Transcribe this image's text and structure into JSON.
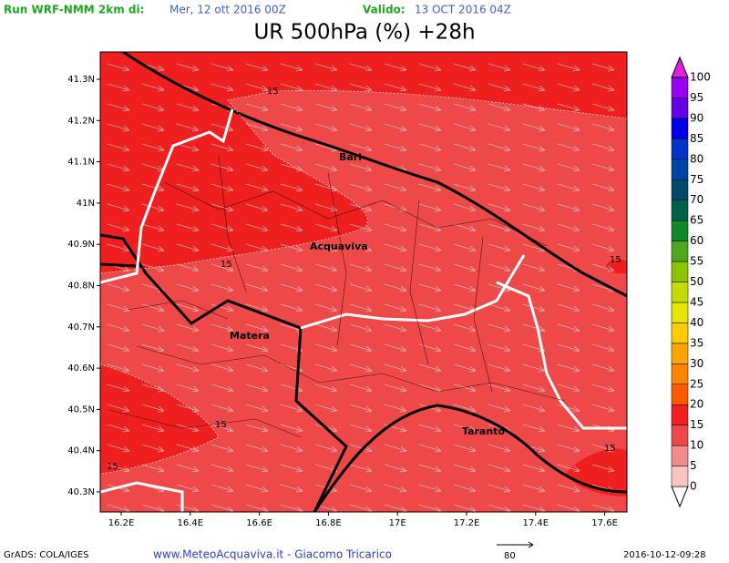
{
  "header": {
    "run_label": "Run WRF-NMM 2km di:",
    "run_date": "Mer, 12 ott 2016 00Z",
    "valid_label": "Valido:",
    "valid_date": "13 OCT 2016 04Z",
    "title": "UR 500hPa (%) +28h"
  },
  "map": {
    "lon_labels": [
      "16.2E",
      "16.4E",
      "16.6E",
      "16.8E",
      "17E",
      "17.2E",
      "17.4E",
      "17.6E"
    ],
    "lat_labels": [
      "41.3N",
      "41.2N",
      "41.1N",
      "41N",
      "40.9N",
      "40.8N",
      "40.7N",
      "40.6N",
      "40.5N",
      "40.4N",
      "40.3N"
    ],
    "places": [
      "Bari",
      "Acquaviva",
      "Matera",
      "Taranto"
    ],
    "contour_labels": [
      "15",
      "15",
      "15",
      "15",
      "15",
      "15"
    ]
  },
  "colorbar": {
    "labels": [
      "0",
      "5",
      "10",
      "15",
      "20",
      "25",
      "30",
      "35",
      "40",
      "45",
      "50",
      "55",
      "60",
      "65",
      "70",
      "75",
      "80",
      "85",
      "90",
      "95",
      "100"
    ],
    "colors": [
      "#ffffff",
      "#f8c4c4",
      "#f18d8d",
      "#ee4848",
      "#f01f1f",
      "#ff5a00",
      "#ff8200",
      "#ffa400",
      "#ffcc00",
      "#e6e600",
      "#c4dc00",
      "#8cc400",
      "#4fa81c",
      "#108a28",
      "#00604a",
      "#004a6c",
      "#0044a8",
      "#0034c8",
      "#0000e8",
      "#6600e6",
      "#9a00f2",
      "#e020e0"
    ]
  },
  "footer": {
    "software": "GrADS: COLA/IGES",
    "credit": "www.MeteoAcquaviva.it - Giacomo Tricarico",
    "vector_ref": "80",
    "timestamp": "2016-10-12-09:28"
  }
}
